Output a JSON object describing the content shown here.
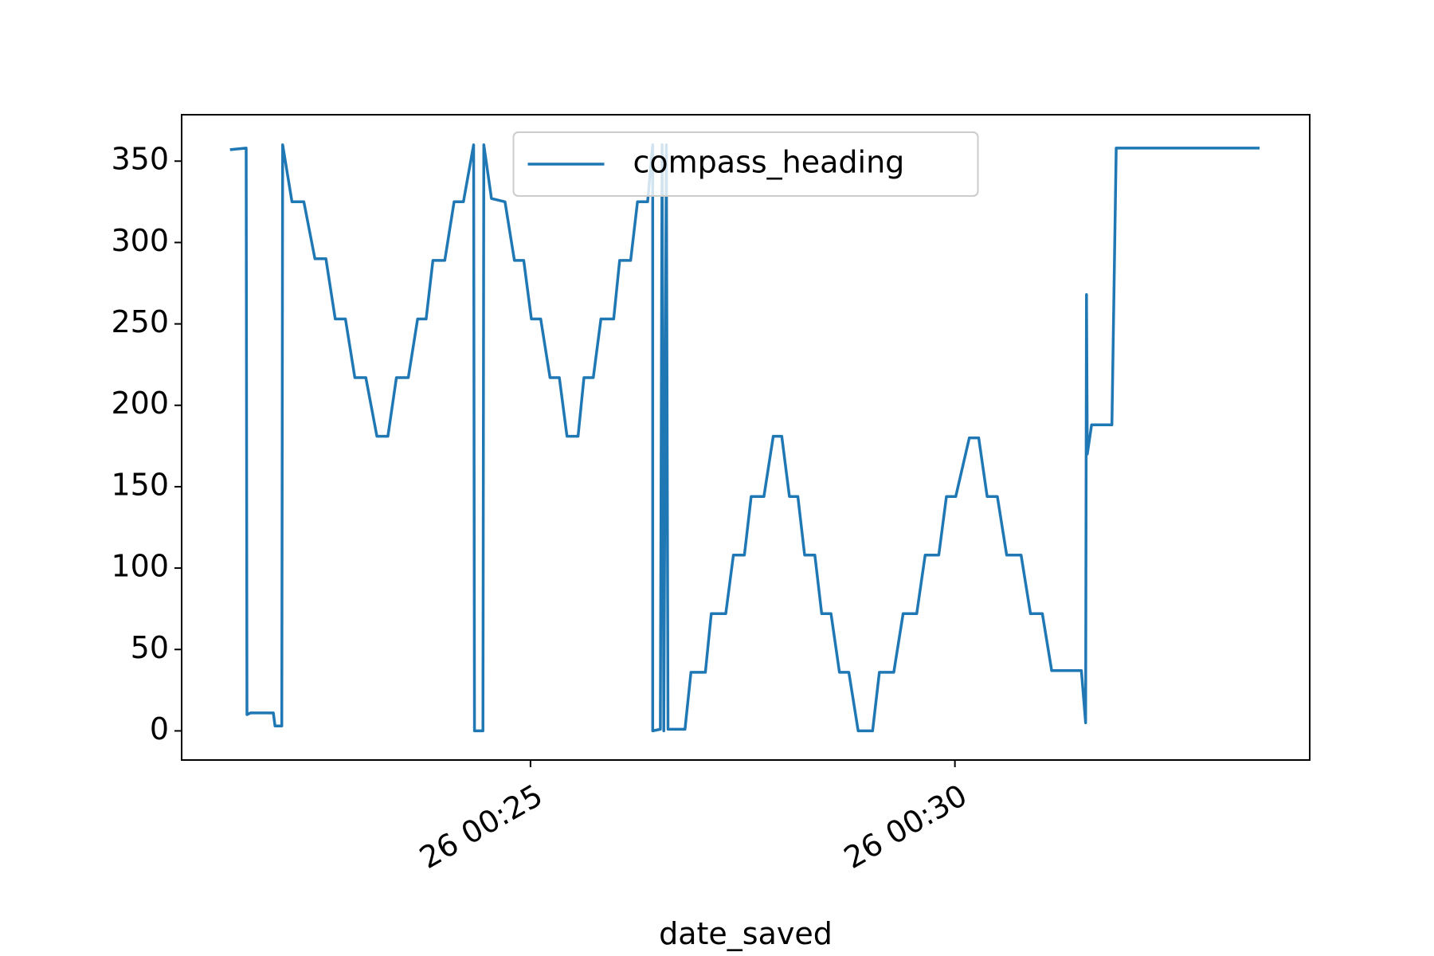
{
  "chart_data": {
    "type": "line",
    "x_label": "date_saved",
    "x": [
      21.46,
      21.65,
      21.66,
      21.7,
      21.97,
      21.99,
      22.07,
      22.08,
      22.19,
      22.33,
      22.46,
      22.59,
      22.7,
      22.82,
      22.93,
      23.06,
      23.19,
      23.32,
      23.42,
      23.56,
      23.67,
      23.77,
      23.85,
      23.99,
      24.1,
      24.21,
      24.33,
      24.34,
      24.44,
      24.45,
      24.54,
      24.7,
      24.81,
      24.92,
      25.01,
      25.12,
      25.23,
      25.34,
      25.43,
      25.56,
      25.63,
      25.74,
      25.83,
      25.98,
      26.05,
      26.18,
      26.26,
      26.38,
      26.44,
      26.44,
      26.53,
      26.55,
      26.57,
      26.6,
      26.62,
      26.82,
      26.89,
      27.06,
      27.13,
      27.3,
      27.39,
      27.52,
      27.6,
      27.75,
      27.86,
      27.96,
      28.05,
      28.15,
      28.23,
      28.35,
      28.43,
      28.54,
      28.64,
      28.75,
      28.86,
      29.03,
      29.11,
      29.28,
      29.39,
      29.55,
      29.65,
      29.81,
      29.9,
      30.01,
      30.17,
      30.28,
      30.38,
      30.5,
      30.61,
      30.78,
      30.89,
      31.03,
      31.14,
      31.49,
      31.54,
      31.55,
      31.56,
      31.61,
      31.85,
      31.9,
      32.31,
      33.59
    ],
    "series": [
      {
        "name": "compass_heading",
        "color": "#1f77b4",
        "values": [
          357,
          358,
          10,
          11,
          11,
          3,
          3,
          360,
          325,
          325,
          290,
          290,
          253,
          253,
          217,
          217,
          181,
          181,
          217,
          217,
          253,
          253,
          289,
          289,
          325,
          325,
          360,
          0,
          0,
          360,
          327,
          325,
          289,
          289,
          253,
          253,
          217,
          217,
          181,
          181,
          217,
          217,
          253,
          253,
          289,
          289,
          325,
          325,
          360,
          0,
          1,
          360,
          0,
          360,
          1,
          1,
          36,
          36,
          72,
          72,
          108,
          108,
          144,
          144,
          181,
          181,
          144,
          144,
          108,
          108,
          72,
          72,
          36,
          36,
          0,
          0,
          36,
          36,
          72,
          72,
          108,
          108,
          144,
          144,
          180,
          180,
          144,
          144,
          108,
          108,
          72,
          72,
          37,
          37,
          5,
          268,
          170,
          188,
          188,
          358,
          358,
          358
        ]
      }
    ],
    "xlim": [
      20.89,
      34.18
    ],
    "xticks": [
      {
        "value": 25,
        "label": "26 00:25"
      },
      {
        "value": 30,
        "label": "26 00:30"
      }
    ],
    "ylim": [
      -17.9,
      378.5
    ],
    "yticks": [
      0,
      50,
      100,
      150,
      200,
      250,
      300,
      350
    ],
    "legend": "upper center"
  }
}
